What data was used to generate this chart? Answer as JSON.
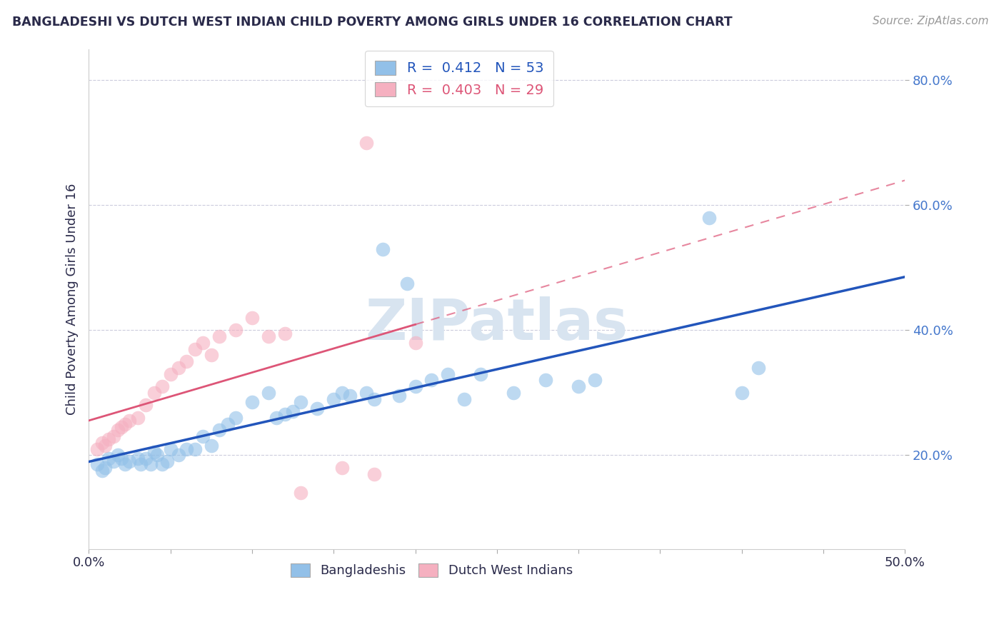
{
  "title": "BANGLADESHI VS DUTCH WEST INDIAN CHILD POVERTY AMONG GIRLS UNDER 16 CORRELATION CHART",
  "source": "Source: ZipAtlas.com",
  "ylabel": "Child Poverty Among Girls Under 16",
  "xlim": [
    0.0,
    0.5
  ],
  "ylim": [
    0.05,
    0.85
  ],
  "yticks": [
    0.2,
    0.4,
    0.6,
    0.8
  ],
  "ytick_labels": [
    "20.0%",
    "40.0%",
    "60.0%",
    "80.0%"
  ],
  "xticks": [
    0.0,
    0.1,
    0.2,
    0.3,
    0.4,
    0.5
  ],
  "xtick_labels": [
    "0.0%",
    "",
    "",
    "",
    "",
    "50.0%"
  ],
  "legend_r1": "R =  0.412   N = 53",
  "legend_r2": "R =  0.403   N = 29",
  "blue_color": "#92c0e8",
  "pink_color": "#f5b0c0",
  "line_blue": "#2255bb",
  "line_pink": "#dd5577",
  "title_color": "#2a2a4a",
  "tick_color": "#4477cc",
  "grid_color": "#ccccdd",
  "blue_scatter_x": [
    0.005,
    0.008,
    0.01,
    0.012,
    0.015,
    0.018,
    0.02,
    0.022,
    0.025,
    0.03,
    0.032,
    0.035,
    0.038,
    0.04,
    0.042,
    0.045,
    0.048,
    0.05,
    0.055,
    0.06,
    0.065,
    0.07,
    0.075,
    0.08,
    0.085,
    0.09,
    0.1,
    0.11,
    0.115,
    0.12,
    0.125,
    0.13,
    0.14,
    0.15,
    0.155,
    0.16,
    0.17,
    0.175,
    0.19,
    0.2,
    0.21,
    0.22,
    0.23,
    0.24,
    0.26,
    0.28,
    0.3,
    0.31,
    0.38,
    0.4,
    0.41,
    0.18,
    0.195
  ],
  "blue_scatter_y": [
    0.185,
    0.175,
    0.18,
    0.195,
    0.19,
    0.2,
    0.195,
    0.185,
    0.19,
    0.195,
    0.185,
    0.195,
    0.185,
    0.205,
    0.2,
    0.185,
    0.19,
    0.21,
    0.2,
    0.21,
    0.21,
    0.23,
    0.215,
    0.24,
    0.25,
    0.26,
    0.285,
    0.3,
    0.26,
    0.265,
    0.27,
    0.285,
    0.275,
    0.29,
    0.3,
    0.295,
    0.3,
    0.29,
    0.295,
    0.31,
    0.32,
    0.33,
    0.29,
    0.33,
    0.3,
    0.32,
    0.31,
    0.32,
    0.58,
    0.3,
    0.34,
    0.53,
    0.475
  ],
  "pink_scatter_x": [
    0.005,
    0.008,
    0.01,
    0.012,
    0.015,
    0.018,
    0.02,
    0.022,
    0.025,
    0.03,
    0.035,
    0.04,
    0.045,
    0.05,
    0.055,
    0.06,
    0.065,
    0.07,
    0.075,
    0.08,
    0.09,
    0.1,
    0.11,
    0.12,
    0.13,
    0.155,
    0.17,
    0.2,
    0.175
  ],
  "pink_scatter_y": [
    0.21,
    0.22,
    0.215,
    0.225,
    0.23,
    0.24,
    0.245,
    0.25,
    0.255,
    0.26,
    0.28,
    0.3,
    0.31,
    0.33,
    0.34,
    0.35,
    0.37,
    0.38,
    0.36,
    0.39,
    0.4,
    0.42,
    0.39,
    0.395,
    0.14,
    0.18,
    0.7,
    0.38,
    0.17
  ],
  "watermark_text": "ZIPatlas",
  "watermark_color": "#d8e4f0"
}
